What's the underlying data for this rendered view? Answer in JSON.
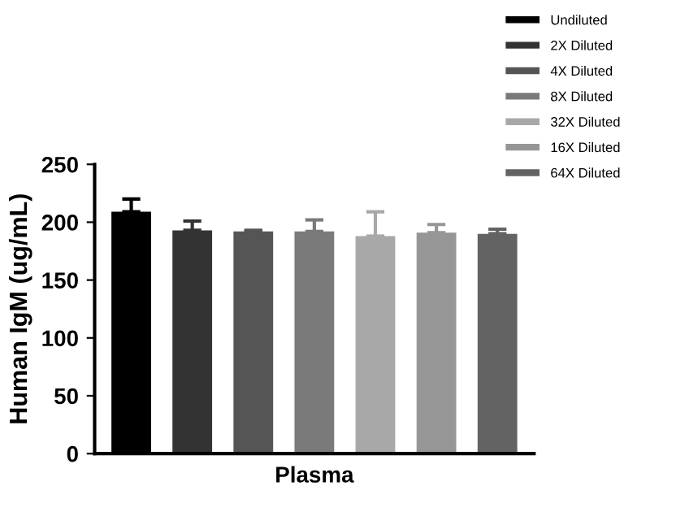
{
  "chart_data": {
    "type": "bar",
    "categories": [
      null,
      null,
      null,
      null,
      null,
      null,
      null
    ],
    "xlabel": "Plasma",
    "ylabel": "Human IgM (ug/mL)",
    "ylim": [
      0,
      250
    ],
    "yticks": [
      0,
      50,
      100,
      150,
      200,
      250
    ],
    "grid": false,
    "legend": "top right",
    "series": [
      {
        "name": "Undiluted",
        "color": "#000000",
        "values": [
          209,
          null,
          null,
          null,
          null,
          null,
          null
        ],
        "errors": [
          [
            209,
            220
          ],
          null,
          null,
          null,
          null,
          null,
          null
        ]
      },
      {
        "name": "2X Diluted",
        "color": "#333333",
        "values": [
          null,
          193,
          null,
          null,
          null,
          null,
          null
        ],
        "errors": [
          null,
          [
            193,
            201
          ],
          null,
          null,
          null,
          null,
          null
        ]
      },
      {
        "name": "4X Diluted",
        "color": "#555555",
        "values": [
          null,
          null,
          192,
          null,
          null,
          null,
          null
        ],
        "errors": [
          null,
          null,
          [
            192,
            193
          ],
          null,
          null,
          null,
          null
        ]
      },
      {
        "name": "8X Diluted",
        "color": "#7a7a7a",
        "values": [
          null,
          null,
          null,
          192,
          null,
          null,
          null
        ],
        "errors": [
          null,
          null,
          null,
          [
            192,
            202
          ],
          null,
          null,
          null
        ]
      },
      {
        "name": "32X Diluted",
        "color": "#a8a8a8",
        "values": [
          null,
          null,
          null,
          null,
          188,
          null,
          null
        ],
        "errors": [
          null,
          null,
          null,
          null,
          [
            188,
            209
          ],
          null,
          null
        ]
      },
      {
        "name": "16X Diluted",
        "color": "#969696",
        "values": [
          null,
          null,
          null,
          null,
          null,
          191,
          null
        ],
        "errors": [
          null,
          null,
          null,
          null,
          null,
          [
            191,
            198
          ],
          null
        ]
      },
      {
        "name": "64X Diluted",
        "color": "#636363",
        "values": [
          null,
          null,
          null,
          null,
          null,
          null,
          190
        ],
        "errors": [
          null,
          null,
          null,
          null,
          null,
          null,
          [
            190,
            194
          ]
        ]
      }
    ]
  }
}
